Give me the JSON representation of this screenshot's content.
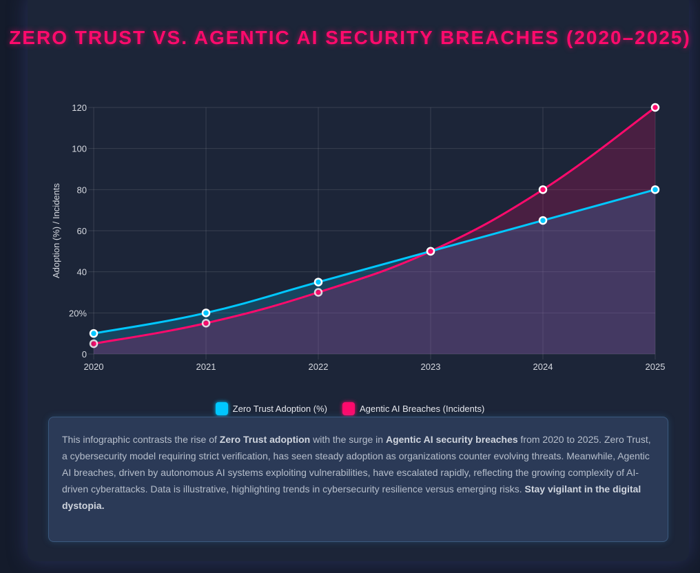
{
  "title": "Zero Trust vs. Agentic AI Security Breaches (2020–2025)",
  "chart_data": {
    "type": "line",
    "area": true,
    "categories": [
      "2020",
      "2021",
      "2022",
      "2023",
      "2024",
      "2025"
    ],
    "series": [
      {
        "name": "Zero Trust Adoption (%)",
        "values": [
          10,
          20,
          35,
          50,
          65,
          80
        ],
        "color": "#00c8ff"
      },
      {
        "name": "Agentic AI Breaches (Incidents)",
        "values": [
          5,
          15,
          30,
          50,
          80,
          120
        ],
        "color": "#ff0a6c"
      }
    ],
    "ylabel": "Adoption (%) / Incidents",
    "xlabel": "",
    "ylim": [
      0,
      120
    ],
    "yticks": [
      0,
      20,
      40,
      60,
      80,
      100,
      120
    ],
    "ytick_labels": [
      "0",
      "20%",
      "40",
      "60",
      "80",
      "100",
      "120"
    ],
    "grid": true,
    "legend": "bottom"
  },
  "description": {
    "p1": "This infographic contrasts the rise of ",
    "b1": "Zero Trust adoption",
    "p2": " with the surge in ",
    "b2": "Agentic AI security breaches",
    "p3": " from 2020 to 2025. Zero Trust, a cybersecurity model requiring strict verification, has seen steady adoption as organizations counter evolving threats. Meanwhile, Agentic AI breaches, driven by autonomous AI systems exploiting vulnerabilities, have escalated rapidly, reflecting the growing complexity of AI-driven cyberattacks. Data is illustrative, highlighting trends in cybersecurity resilience versus emerging risks. ",
    "b3": "Stay vigilant in the digital dystopia."
  }
}
